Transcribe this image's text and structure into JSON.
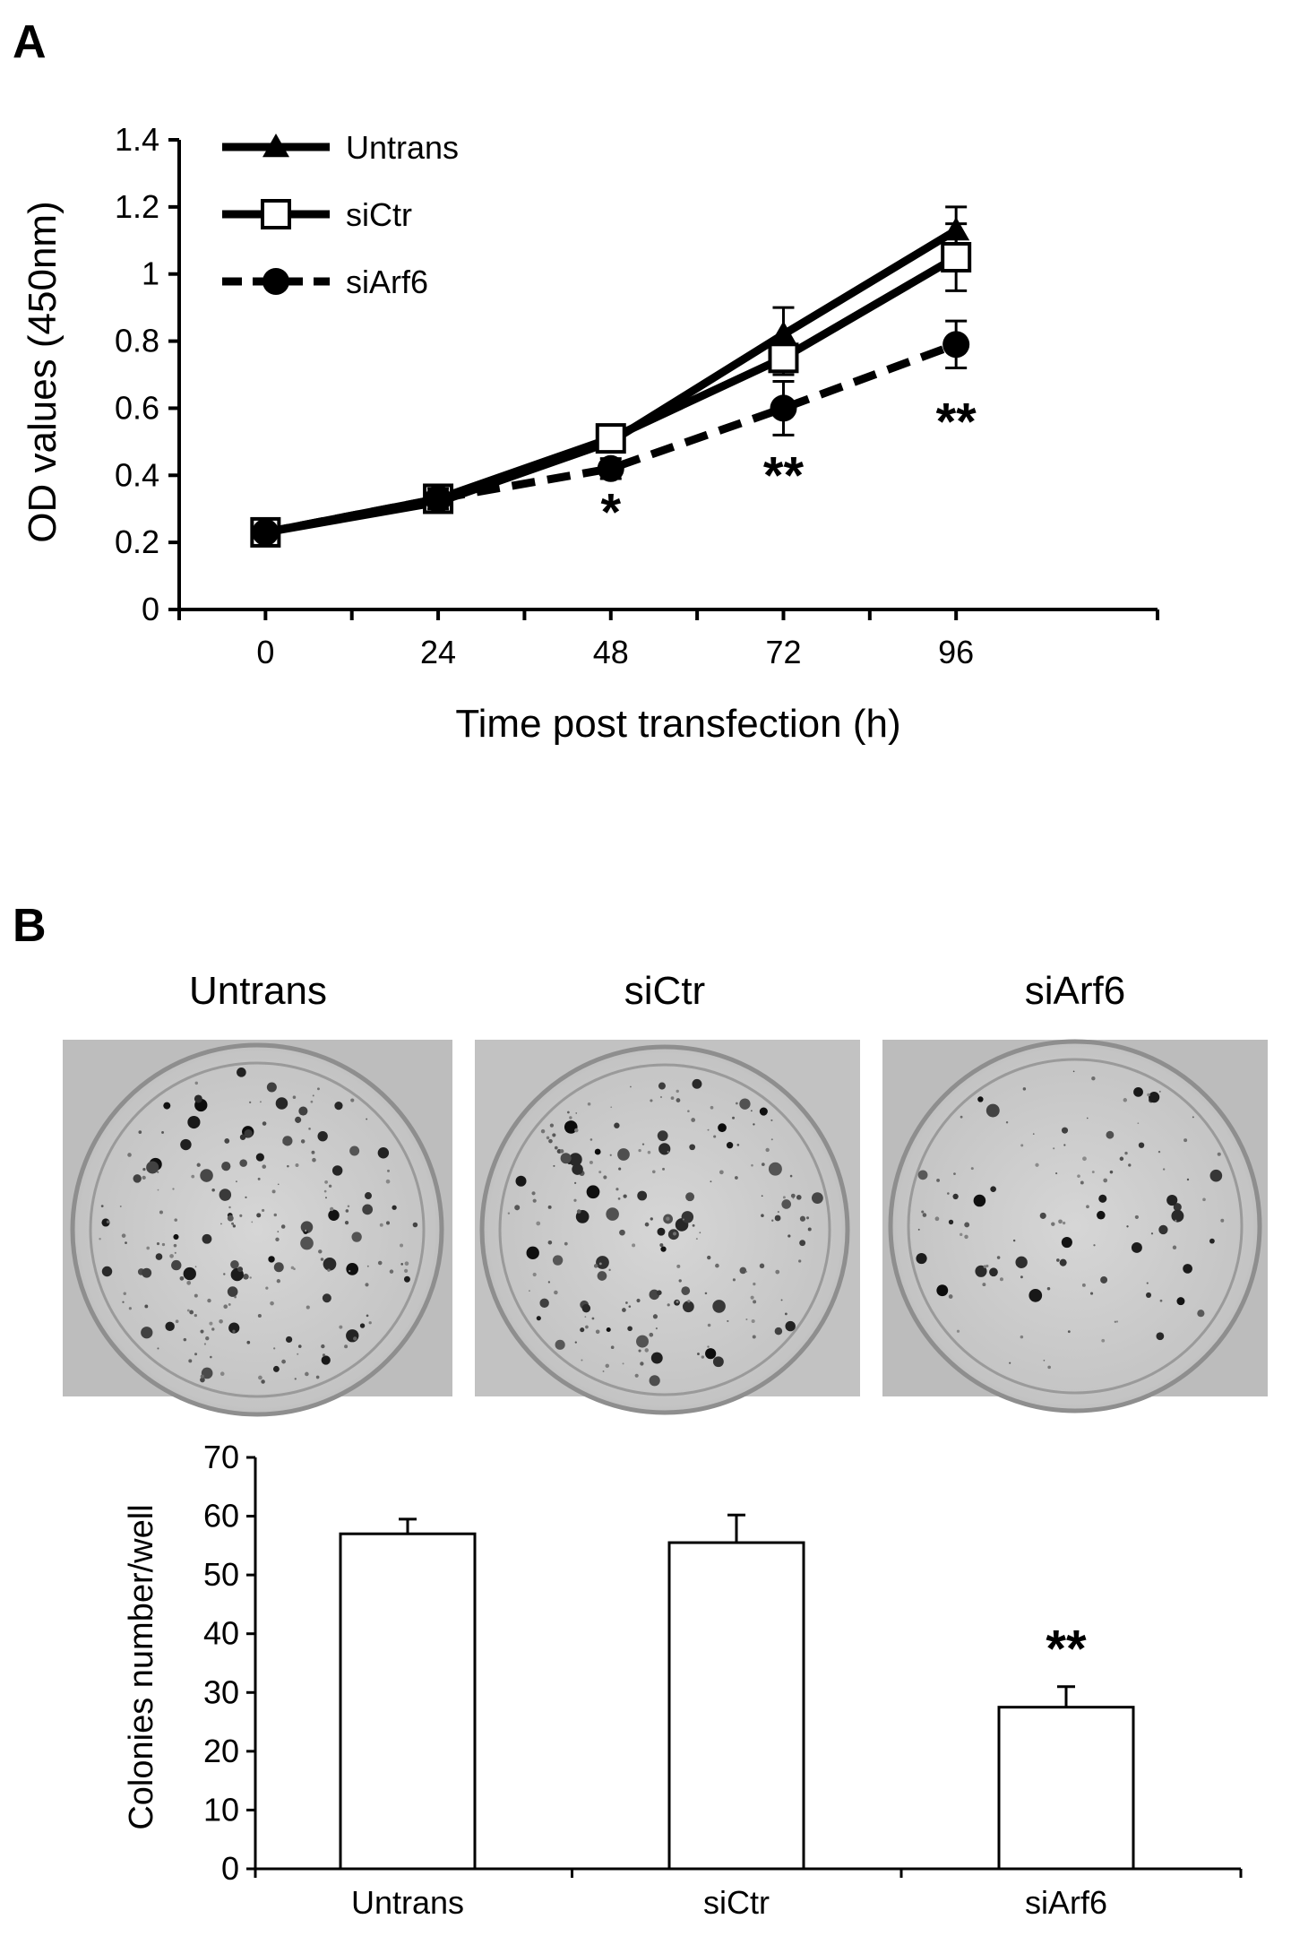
{
  "panels": {
    "a": "A",
    "b": "B"
  },
  "photos": {
    "titles": [
      "Untrans",
      "siCtr",
      "siArf6"
    ]
  },
  "chart_data": [
    {
      "type": "line",
      "xlabel": "Time post transfection (h)",
      "ylabel": "OD values (450nm)",
      "x": [
        0,
        24,
        48,
        72,
        96
      ],
      "xticks": [
        "0",
        "24",
        "48",
        "72",
        "96"
      ],
      "ylim": [
        0,
        1.4
      ],
      "yticks": [
        "0",
        "0.2",
        "0.4",
        "0.6",
        "0.8",
        "1",
        "1.2",
        "1.4"
      ],
      "grid": false,
      "legend": "top-left",
      "series": [
        {
          "name": "Untrans",
          "marker": "triangle",
          "dash": false,
          "values": [
            0.23,
            0.32,
            0.5,
            0.82,
            1.13
          ],
          "errors": [
            0.02,
            0.03,
            0.03,
            0.08,
            0.07
          ]
        },
        {
          "name": "siCtr",
          "marker": "open-square",
          "dash": false,
          "values": [
            0.23,
            0.33,
            0.51,
            0.75,
            1.05
          ],
          "errors": [
            0.02,
            0.03,
            0.03,
            0.05,
            0.1
          ]
        },
        {
          "name": "siArf6",
          "marker": "circle",
          "dash": true,
          "values": [
            0.23,
            0.33,
            0.42,
            0.6,
            0.79
          ],
          "errors": [
            0.02,
            0.03,
            0.03,
            0.08,
            0.07
          ]
        }
      ],
      "annotations": [
        {
          "x": 48,
          "y": 0.29,
          "text": "*"
        },
        {
          "x": 72,
          "y": 0.4,
          "text": "**"
        },
        {
          "x": 96,
          "y": 0.56,
          "text": "**"
        }
      ]
    },
    {
      "type": "bar",
      "ylabel": "Colonies number/well",
      "categories": [
        "Untrans",
        "siCtr",
        "siArf6"
      ],
      "values": [
        57,
        55.5,
        27.5
      ],
      "errors": [
        2.5,
        4.7,
        3.5
      ],
      "ylim": [
        0,
        70
      ],
      "yticks": [
        "0",
        "10",
        "20",
        "30",
        "40",
        "50",
        "60",
        "70"
      ],
      "grid": false,
      "annotations": [
        {
          "category": "siArf6",
          "text": "**"
        }
      ]
    }
  ]
}
